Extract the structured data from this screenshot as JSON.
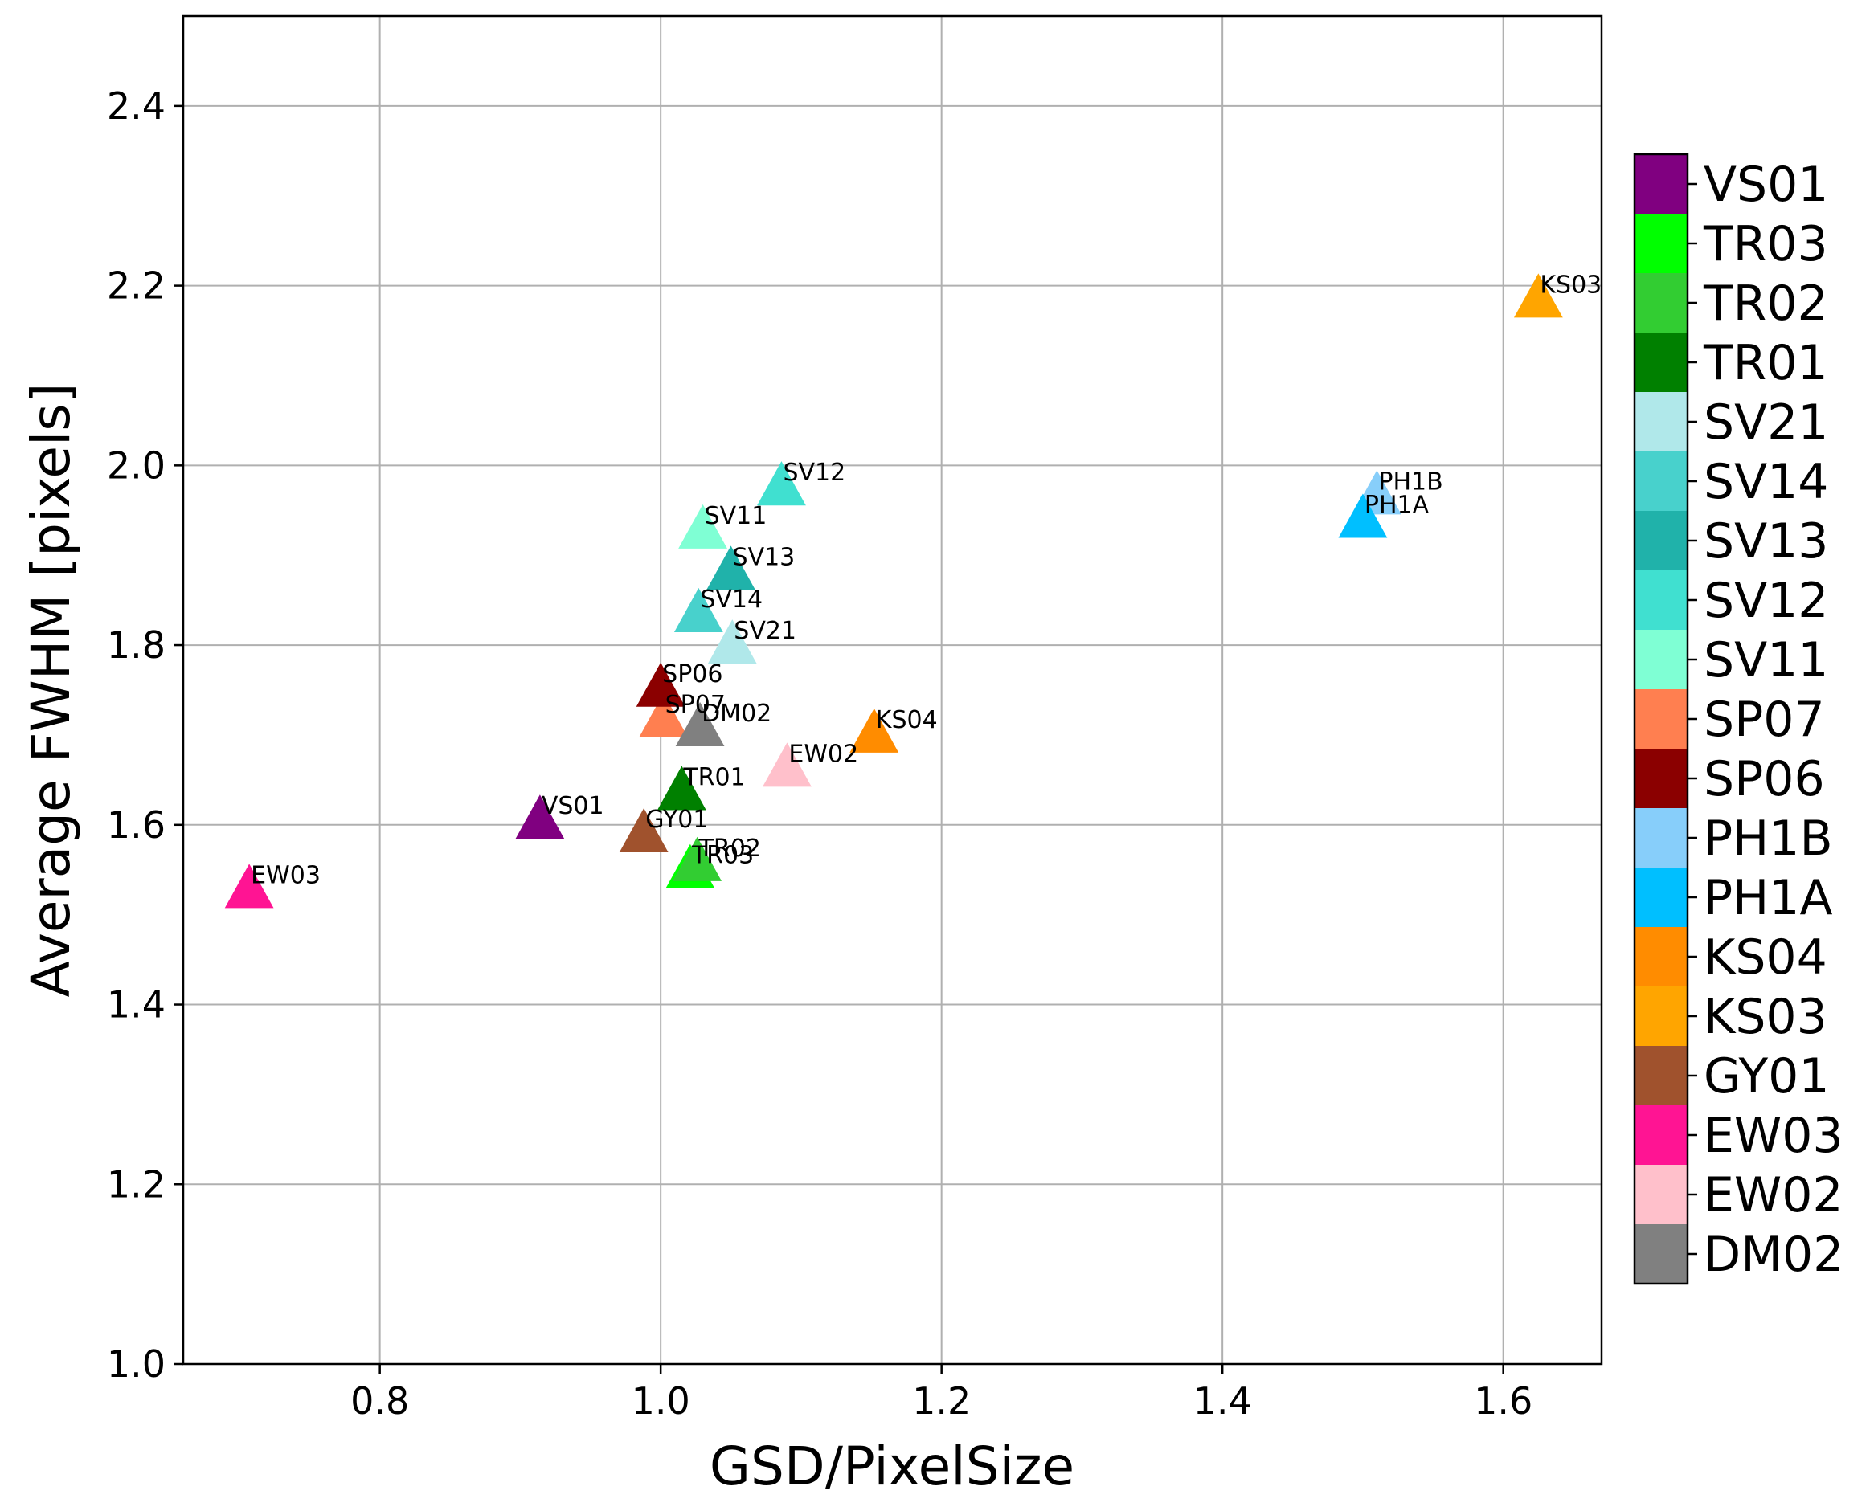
{
  "chart_data": {
    "type": "scatter",
    "xlabel": "GSD/PixelSize",
    "ylabel": "Average FWHM [pixels]",
    "xlim": [
      0.66,
      1.67
    ],
    "ylim": [
      1.0,
      2.5
    ],
    "x_ticks": [
      {
        "value": 0.8,
        "label": "0.8"
      },
      {
        "value": 1.0,
        "label": "1.0"
      },
      {
        "value": 1.2,
        "label": "1.2"
      },
      {
        "value": 1.4,
        "label": "1.4"
      },
      {
        "value": 1.6,
        "label": "1.6"
      }
    ],
    "y_ticks": [
      {
        "value": 1.0,
        "label": "1.0"
      },
      {
        "value": 1.2,
        "label": "1.2"
      },
      {
        "value": 1.4,
        "label": "1.4"
      },
      {
        "value": 1.6,
        "label": "1.6"
      },
      {
        "value": 1.8,
        "label": "1.8"
      },
      {
        "value": 2.0,
        "label": "2.0"
      },
      {
        "value": 2.2,
        "label": "2.2"
      },
      {
        "value": 2.4,
        "label": "2.4"
      }
    ],
    "grid": true,
    "marker": "triangle-up",
    "legend_position": "right",
    "points": [
      {
        "name": "VS01",
        "x": 0.914,
        "y": 1.605,
        "color": "#800080"
      },
      {
        "name": "TR03",
        "x": 1.021,
        "y": 1.55,
        "color": "#00FF00"
      },
      {
        "name": "TR02",
        "x": 1.026,
        "y": 1.558,
        "color": "#32CD32"
      },
      {
        "name": "TR01",
        "x": 1.015,
        "y": 1.637,
        "color": "#008000"
      },
      {
        "name": "SV21",
        "x": 1.051,
        "y": 1.8,
        "color": "#B0E8EA"
      },
      {
        "name": "SV14",
        "x": 1.027,
        "y": 1.835,
        "color": "#48D1CC"
      },
      {
        "name": "SV13",
        "x": 1.05,
        "y": 1.882,
        "color": "#20B2AA"
      },
      {
        "name": "SV12",
        "x": 1.086,
        "y": 1.976,
        "color": "#40E0D0"
      },
      {
        "name": "SV11",
        "x": 1.03,
        "y": 1.928,
        "color": "#7FFFD4"
      },
      {
        "name": "SP07",
        "x": 1.002,
        "y": 1.718,
        "color": "#FF7F50"
      },
      {
        "name": "SP06",
        "x": 1.0,
        "y": 1.752,
        "color": "#8B0000"
      },
      {
        "name": "PH1B",
        "x": 1.51,
        "y": 1.966,
        "color": "#87CEFA"
      },
      {
        "name": "PH1A",
        "x": 1.5,
        "y": 1.94,
        "color": "#00BFFF"
      },
      {
        "name": "KS04",
        "x": 1.152,
        "y": 1.701,
        "color": "#FF8C00"
      },
      {
        "name": "KS03",
        "x": 1.625,
        "y": 2.185,
        "color": "#FFA500"
      },
      {
        "name": "GY01",
        "x": 0.988,
        "y": 1.59,
        "color": "#A0522D"
      },
      {
        "name": "EW03",
        "x": 0.707,
        "y": 1.528,
        "color": "#FF1493"
      },
      {
        "name": "EW02",
        "x": 1.09,
        "y": 1.663,
        "color": "#FFC0CB"
      },
      {
        "name": "DM02",
        "x": 1.028,
        "y": 1.708,
        "color": "#808080"
      }
    ],
    "legend_order": [
      "VS01",
      "TR03",
      "TR02",
      "TR01",
      "SV21",
      "SV14",
      "SV13",
      "SV12",
      "SV11",
      "SP07",
      "SP06",
      "PH1B",
      "PH1A",
      "KS04",
      "KS03",
      "GY01",
      "EW03",
      "EW02",
      "DM02"
    ]
  }
}
